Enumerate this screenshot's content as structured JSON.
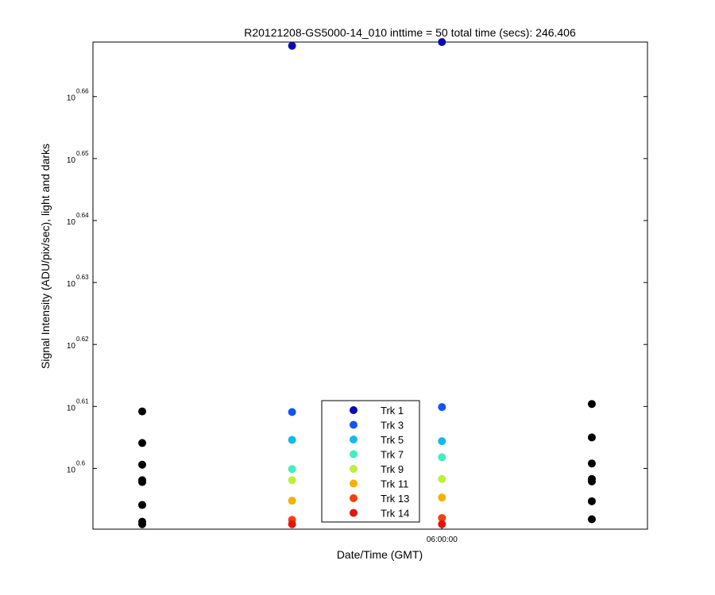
{
  "chart_data": {
    "type": "scatter",
    "title": "R20121208-GS5000-14_010 inttime = 50 total time (secs): 246.406",
    "xlabel": "Date/Time (GMT)",
    "ylabel": "Signal Intensity (ADU/pix/sec), light and darks",
    "y_scale": "log",
    "x_categories": [
      "",
      "",
      "06:00:00",
      ""
    ],
    "x_ticks": [
      {
        "x": 2,
        "label": "06:00:00"
      }
    ],
    "xlim": [
      0,
      3.7
    ],
    "ylim_exponent": [
      0.5902,
      0.6688
    ],
    "y_ticks": [
      {
        "base": "10",
        "exponent": "0.6",
        "value": 0.6
      },
      {
        "base": "10",
        "exponent": "0.61",
        "value": 0.61
      },
      {
        "base": "10",
        "exponent": "0.62",
        "value": 0.62
      },
      {
        "base": "10",
        "exponent": "0.63",
        "value": 0.63
      },
      {
        "base": "10",
        "exponent": "0.64",
        "value": 0.64
      },
      {
        "base": "10",
        "exponent": "0.65",
        "value": 0.65
      },
      {
        "base": "10",
        "exponent": "0.66",
        "value": 0.66
      }
    ],
    "legend": {
      "placement": "bottom-center",
      "entries": [
        "Trk 1",
        "Trk 3",
        "Trk 5",
        "Trk 7",
        "Trk 9",
        "Trk 11",
        "Trk 13",
        "Trk 14"
      ]
    },
    "series": [
      {
        "name": "Trk 1",
        "color": "#0a0ab4",
        "points": [
          [
            1,
            0.6682
          ],
          [
            2,
            0.6688
          ]
        ]
      },
      {
        "name": "Trk 3",
        "color": "#1255f0",
        "points": [
          [
            1,
            0.6091
          ],
          [
            2,
            0.6099
          ]
        ]
      },
      {
        "name": "Trk 5",
        "color": "#14b8ec",
        "points": [
          [
            1,
            0.6046
          ],
          [
            2,
            0.6044
          ]
        ]
      },
      {
        "name": "Trk 7",
        "color": "#3ff0c0",
        "points": [
          [
            1,
            0.5999
          ],
          [
            2,
            0.6018
          ]
        ]
      },
      {
        "name": "Trk 9",
        "color": "#b9f03a",
        "points": [
          [
            1,
            0.5981
          ],
          [
            2,
            0.5983
          ]
        ]
      },
      {
        "name": "Trk 11",
        "color": "#f5b000",
        "points": [
          [
            1,
            0.5948
          ],
          [
            2,
            0.5953
          ]
        ]
      },
      {
        "name": "Trk 13",
        "color": "#f04010",
        "points": [
          [
            1,
            0.5917
          ],
          [
            2,
            0.592
          ]
        ]
      },
      {
        "name": "Trk 14",
        "color": "#e4150c",
        "points": [
          [
            1,
            0.591
          ],
          [
            2,
            0.591
          ]
        ]
      },
      {
        "name": "",
        "color": "#000000",
        "points": [
          [
            0,
            0.6092
          ],
          [
            0,
            0.6041
          ],
          [
            0,
            0.6006
          ],
          [
            0,
            0.5981
          ],
          [
            0,
            0.5978
          ],
          [
            0,
            0.5941
          ],
          [
            0,
            0.5914
          ],
          [
            0,
            0.591
          ],
          [
            3,
            0.6104
          ],
          [
            3,
            0.605
          ],
          [
            3,
            0.6008
          ],
          [
            3,
            0.5983
          ],
          [
            3,
            0.5979
          ],
          [
            3,
            0.5947
          ],
          [
            3,
            0.5918
          ]
        ]
      }
    ]
  }
}
